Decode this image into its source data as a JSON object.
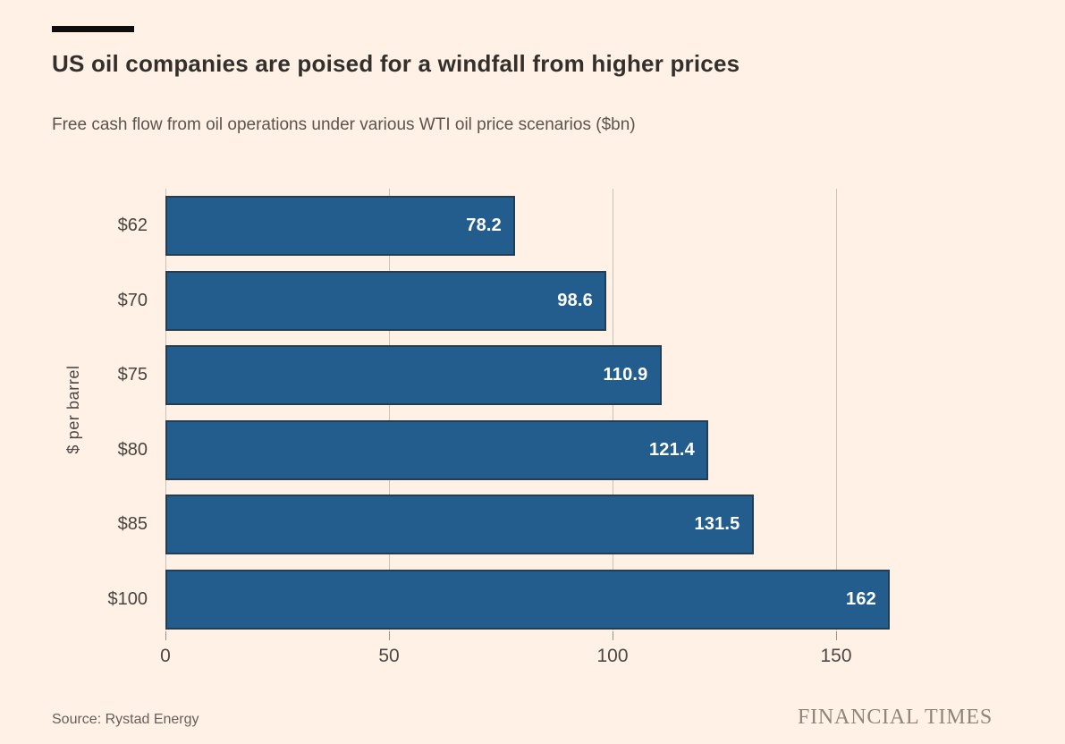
{
  "header": {
    "title": "US oil companies are poised for a windfall from higher prices",
    "subtitle": "Free cash flow from oil operations under various WTI oil price scenarios ($bn)"
  },
  "chart_data": {
    "type": "bar",
    "orientation": "horizontal",
    "title": "US oil companies are poised for a windfall from higher prices",
    "subtitle": "Free cash flow from oil operations under various WTI oil price scenarios ($bn)",
    "categories": [
      "$62",
      "$70",
      "$75",
      "$80",
      "$85",
      "$100"
    ],
    "values": [
      78.2,
      98.6,
      110.9,
      121.4,
      131.5,
      162
    ],
    "value_labels": [
      "78.2",
      "98.6",
      "110.9",
      "121.4",
      "131.5",
      "162"
    ],
    "xlabel": "",
    "ylabel": "$ per barrel",
    "x_ticks": [
      0,
      50,
      100,
      150
    ],
    "xlim": [
      0,
      168
    ],
    "grid": true,
    "legend": "none",
    "colors": {
      "bar_fill": "#235D8D",
      "bar_border": "rgba(40,36,30,0.55)",
      "background": "#FFF1E5",
      "gridline": "#CDC2B5"
    }
  },
  "footer": {
    "source": "Source: Rystad Energy",
    "brand": "FINANCIAL TIMES"
  }
}
